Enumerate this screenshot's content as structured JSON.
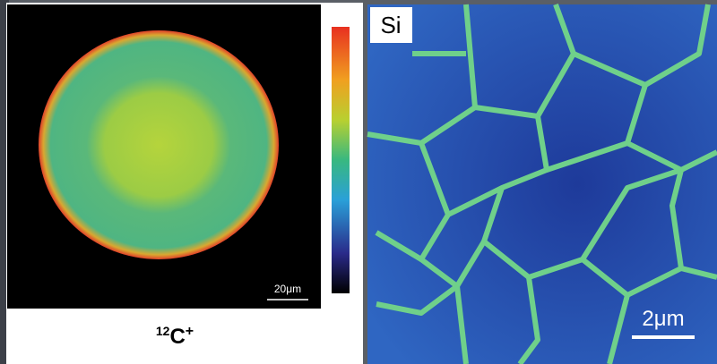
{
  "left_panel": {
    "scale_bar": "20μm",
    "label": {
      "isotope": "12",
      "element": "C",
      "charge": "+"
    }
  },
  "right_panel": {
    "element": "Si",
    "scale_bar": "2μm"
  }
}
